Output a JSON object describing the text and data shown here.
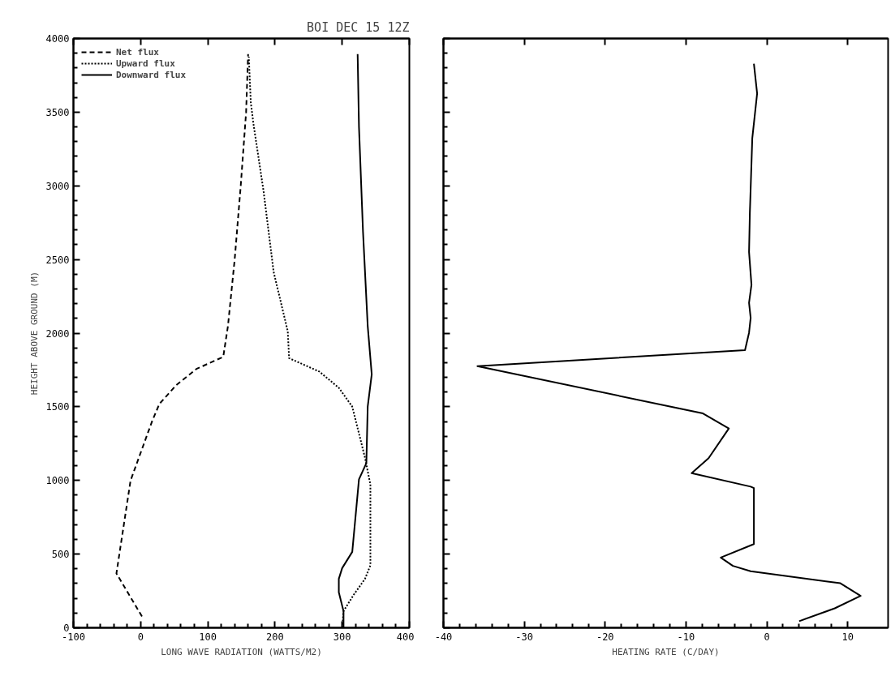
{
  "chart_data": [
    {
      "type": "line",
      "title": "BOI DEC 15 12Z",
      "xlabel": "LONG WAVE RADIATION (WATTS/M2)",
      "ylabel": "HEIGHT ABOVE GROUND (M)",
      "xlim": [
        -100,
        400
      ],
      "ylim": [
        0,
        4000
      ],
      "xticks": [
        -100,
        0,
        100,
        200,
        300,
        400
      ],
      "yticks": [
        0,
        500,
        1000,
        1500,
        2000,
        2500,
        3000,
        3500,
        4000
      ],
      "grid": false,
      "legend": "top left",
      "series": [
        {
          "name": "Net flux",
          "color": "#000000",
          "line_style": "dashed",
          "x": [
            2,
            -36,
            -15,
            17,
            28,
            53,
            83,
            123,
            130,
            140,
            149,
            157,
            160
          ],
          "values": [
            77,
            369,
            999,
            1401,
            1520,
            1647,
            1757,
            1839,
            2049,
            2500,
            3000,
            3500,
            3894
          ]
        },
        {
          "name": "Upward flux",
          "color": "#000000",
          "line_style": "dotted",
          "x": [
            300,
            302,
            317,
            334,
            342,
            342,
            334,
            315,
            295,
            266,
            221,
            219,
            198,
            183,
            168,
            164,
            161
          ],
          "values": [
            0,
            113,
            223,
            332,
            424,
            972,
            1154,
            1501,
            1629,
            1739,
            1830,
            2013,
            2415,
            2963,
            3419,
            3565,
            3876
          ]
        },
        {
          "name": "Downward flux",
          "color": "#000000",
          "line_style": "solid",
          "x": [
            302,
            302,
            295,
            295,
            300,
            315,
            325,
            336,
            338,
            344,
            338,
            331,
            325,
            323
          ],
          "values": [
            0,
            113,
            241,
            332,
            405,
            515,
            1008,
            1118,
            1501,
            1720,
            2049,
            2689,
            3401,
            3894
          ]
        }
      ]
    },
    {
      "type": "line",
      "xlabel": "HEATING RATE (C/DAY)",
      "xlim": [
        -40,
        15
      ],
      "ylim": [
        0,
        4000
      ],
      "xticks": [
        -40,
        -30,
        -20,
        -10,
        0,
        10
      ],
      "yticks": [
        {
          "value": 0,
          "label": null
        },
        {
          "value": 500,
          "label": null
        },
        {
          "value": 1000,
          "label": null
        },
        {
          "value": 1500,
          "label": null
        },
        {
          "value": 2000,
          "label": null
        },
        {
          "value": 2500,
          "label": null
        },
        {
          "value": 3000,
          "label": null
        },
        {
          "value": 3500,
          "label": null
        },
        {
          "value": 4000,
          "label": null
        }
      ],
      "tick_labels": "x",
      "grid": false,
      "series": [
        {
          "color": "#000000",
          "line_style": "solid",
          "x": [
            4.0,
            8.4,
            11.6,
            9.1,
            -2.0,
            -4.2,
            -5.7,
            -1.6,
            -1.6,
            -2.0,
            -9.3,
            -7.2,
            -4.7,
            -7.9,
            -35.8,
            -2.7,
            -2.2,
            -2.0,
            -2.2,
            -1.9,
            -2.2,
            -2.1,
            -1.8,
            -1.2,
            -1.6
          ],
          "values": [
            45,
            132,
            217,
            302,
            384,
            420,
            477,
            568,
            948,
            958,
            1049,
            1151,
            1353,
            1455,
            1776,
            1885,
            2003,
            2104,
            2206,
            2328,
            2551,
            2815,
            3322,
            3626,
            3829
          ]
        }
      ]
    }
  ]
}
